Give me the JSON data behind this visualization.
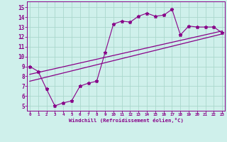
{
  "xlabel": "Windchill (Refroidissement éolien,°C)",
  "bg_color": "#cff0eb",
  "line_color": "#880088",
  "grid_color": "#aad8cc",
  "axis_color": "#880088",
  "tick_label_color": "#880088",
  "xlabel_color": "#880088",
  "x_ticks": [
    0,
    1,
    2,
    3,
    4,
    5,
    6,
    7,
    8,
    9,
    10,
    11,
    12,
    13,
    14,
    15,
    16,
    17,
    18,
    19,
    20,
    21,
    22,
    23
  ],
  "y_ticks": [
    5,
    6,
    7,
    8,
    9,
    10,
    11,
    12,
    13,
    14,
    15
  ],
  "ylim": [
    4.5,
    15.6
  ],
  "xlim": [
    -0.3,
    23.3
  ],
  "scatter_x": [
    0,
    1,
    2,
    3,
    4,
    5,
    6,
    7,
    8,
    9,
    10,
    11,
    12,
    13,
    14,
    15,
    16,
    17,
    18,
    19,
    20,
    21,
    22,
    23
  ],
  "scatter_y": [
    9.0,
    8.5,
    6.7,
    5.0,
    5.3,
    5.5,
    7.0,
    7.3,
    7.5,
    10.4,
    13.3,
    13.6,
    13.5,
    14.1,
    14.4,
    14.1,
    14.2,
    14.8,
    12.2,
    13.1,
    13.0,
    13.0,
    13.0,
    12.4
  ],
  "line1_x": [
    0,
    23
  ],
  "line1_y": [
    7.5,
    12.3
  ],
  "line2_x": [
    0,
    23
  ],
  "line2_y": [
    8.2,
    12.6
  ]
}
